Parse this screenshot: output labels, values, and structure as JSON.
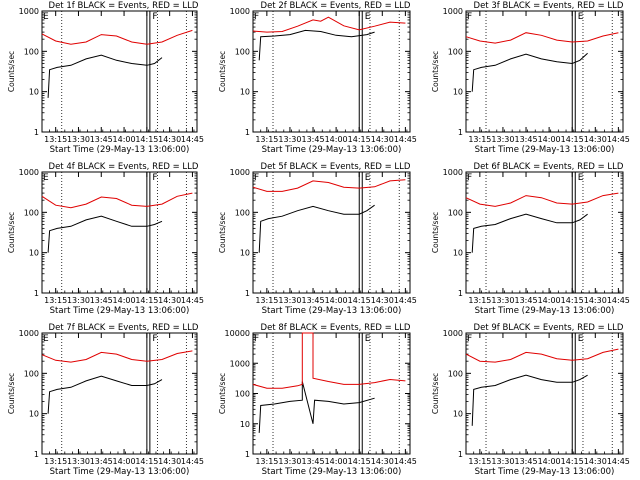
{
  "figure": {
    "colors": {
      "events": "#000000",
      "lld": "#e00000",
      "axes": "#000000",
      "background": "#ffffff"
    }
  },
  "chart_data": [
    {
      "type": "line",
      "title": "Det 1f BLACK = Events, RED = LLD",
      "xlabel": "Start Time (29-May-13 13:06:00)",
      "ylabel": "Counts/sec",
      "yscale": "log",
      "ylim": [
        1,
        1000
      ],
      "xlim": [
        "13:06",
        "14:48"
      ],
      "y_ticks": [
        "1",
        "10",
        "100",
        "1000"
      ],
      "x_ticks": [
        "13:15",
        "13:30",
        "13:45",
        "14:00",
        "14:15",
        "14:30",
        "14:45"
      ],
      "markers": [
        "E",
        "F"
      ],
      "series": [
        {
          "name": "BLACK = Events",
          "color": "#000000",
          "x": [
            "13:10",
            "13:11",
            "13:16",
            "13:25",
            "13:35",
            "13:45",
            "13:55",
            "14:05",
            "14:15",
            "14:20",
            "14:25"
          ],
          "y": [
            7,
            35,
            40,
            45,
            65,
            80,
            60,
            50,
            45,
            50,
            70
          ]
        },
        {
          "name": "RED = LLD",
          "color": "#e00000",
          "x": [
            "13:06",
            "13:15",
            "13:25",
            "13:35",
            "13:45",
            "13:55",
            "14:05",
            "14:15",
            "14:25",
            "14:35",
            "14:45"
          ],
          "y": [
            270,
            180,
            150,
            170,
            260,
            240,
            170,
            150,
            170,
            250,
            330
          ]
        }
      ]
    },
    {
      "type": "line",
      "title": "Det 2f BLACK = Events, RED = LLD",
      "xlabel": "Start Time (29-May-13 13:06:00)",
      "ylabel": "Counts/sec",
      "yscale": "log",
      "ylim": [
        1,
        1000
      ],
      "xlim": [
        "13:06",
        "14:48"
      ],
      "y_ticks": [
        "1",
        "10",
        "100",
        "1000"
      ],
      "x_ticks": [
        "13:15",
        "13:30",
        "13:45",
        "14:00",
        "14:15",
        "14:30",
        "14:45"
      ],
      "markers": [
        "F",
        "E"
      ],
      "series": [
        {
          "name": "BLACK = Events",
          "color": "#000000",
          "x": [
            "13:10",
            "13:11",
            "13:20",
            "13:30",
            "13:40",
            "13:50",
            "14:00",
            "14:10",
            "14:20",
            "14:25"
          ],
          "y": [
            60,
            230,
            240,
            260,
            330,
            310,
            250,
            230,
            260,
            300
          ]
        },
        {
          "name": "RED = LLD",
          "color": "#e00000",
          "x": [
            "13:06",
            "13:15",
            "13:25",
            "13:35",
            "13:45",
            "13:50",
            "13:55",
            "14:05",
            "14:15",
            "14:25",
            "14:35",
            "14:45"
          ],
          "y": [
            320,
            300,
            310,
            420,
            600,
            560,
            700,
            430,
            340,
            420,
            530,
            500
          ]
        }
      ]
    },
    {
      "type": "line",
      "title": "Det 3f BLACK = Events, RED = LLD",
      "xlabel": "Start Time (29-May-13 13:06:00)",
      "ylabel": "Counts/sec",
      "yscale": "log",
      "ylim": [
        1,
        1000
      ],
      "xlim": [
        "13:06",
        "14:48"
      ],
      "y_ticks": [
        "1",
        "10",
        "100",
        "1000"
      ],
      "x_ticks": [
        "13:15",
        "13:30",
        "13:45",
        "14:00",
        "14:15",
        "14:30",
        "14:45"
      ],
      "markers": [
        "F",
        "E"
      ],
      "series": [
        {
          "name": "BLACK = Events",
          "color": "#000000",
          "x": [
            "13:10",
            "13:11",
            "13:16",
            "13:25",
            "13:35",
            "13:45",
            "13:55",
            "14:05",
            "14:15",
            "14:20",
            "14:25"
          ],
          "y": [
            10,
            35,
            40,
            45,
            65,
            85,
            65,
            55,
            50,
            60,
            90
          ]
        },
        {
          "name": "RED = LLD",
          "color": "#e00000",
          "x": [
            "13:06",
            "13:15",
            "13:25",
            "13:35",
            "13:45",
            "13:55",
            "14:05",
            "14:15",
            "14:25",
            "14:35",
            "14:45"
          ],
          "y": [
            230,
            180,
            160,
            190,
            290,
            250,
            190,
            170,
            180,
            240,
            290
          ]
        }
      ]
    },
    {
      "type": "line",
      "title": "Det 4f BLACK = Events, RED = LLD",
      "xlabel": "Start Time (29-May-13 13:06:00)",
      "ylabel": "Counts/sec",
      "yscale": "log",
      "ylim": [
        1,
        1000
      ],
      "xlim": [
        "13:06",
        "14:48"
      ],
      "y_ticks": [
        "1",
        "10",
        "100",
        "1000"
      ],
      "x_ticks": [
        "13:15",
        "13:30",
        "13:45",
        "14:00",
        "14:15",
        "14:30",
        "14:45"
      ],
      "markers": [
        "E",
        "F"
      ],
      "series": [
        {
          "name": "BLACK = Events",
          "color": "#000000",
          "x": [
            "13:10",
            "13:11",
            "13:16",
            "13:25",
            "13:35",
            "13:45",
            "13:55",
            "14:05",
            "14:15",
            "14:20",
            "14:25"
          ],
          "y": [
            10,
            35,
            40,
            45,
            65,
            80,
            60,
            45,
            45,
            50,
            60
          ]
        },
        {
          "name": "RED = LLD",
          "color": "#e00000",
          "x": [
            "13:06",
            "13:15",
            "13:25",
            "13:35",
            "13:45",
            "13:55",
            "14:05",
            "14:15",
            "14:25",
            "14:35",
            "14:45"
          ],
          "y": [
            250,
            150,
            130,
            160,
            240,
            220,
            150,
            140,
            160,
            250,
            300
          ]
        }
      ]
    },
    {
      "type": "line",
      "title": "Det 5f BLACK = Events, RED = LLD",
      "xlabel": "Start Time (29-May-13 13:06:00)",
      "ylabel": "Counts/sec",
      "yscale": "log",
      "ylim": [
        1,
        1000
      ],
      "xlim": [
        "13:06",
        "14:48"
      ],
      "y_ticks": [
        "1",
        "10",
        "100",
        "1000"
      ],
      "x_ticks": [
        "13:15",
        "13:30",
        "13:45",
        "14:00",
        "14:15",
        "14:30",
        "14:45"
      ],
      "markers": [
        "F",
        "E"
      ],
      "series": [
        {
          "name": "BLACK = Events",
          "color": "#000000",
          "x": [
            "13:10",
            "13:11",
            "13:16",
            "13:25",
            "13:35",
            "13:45",
            "13:55",
            "14:05",
            "14:15",
            "14:20",
            "14:25"
          ],
          "y": [
            10,
            60,
            70,
            80,
            110,
            140,
            110,
            90,
            90,
            110,
            150
          ]
        },
        {
          "name": "RED = LLD",
          "color": "#e00000",
          "x": [
            "13:06",
            "13:15",
            "13:25",
            "13:35",
            "13:45",
            "13:55",
            "14:05",
            "14:15",
            "14:25",
            "14:35",
            "14:45"
          ],
          "y": [
            420,
            330,
            330,
            400,
            600,
            550,
            420,
            400,
            430,
            600,
            640
          ]
        }
      ]
    },
    {
      "type": "line",
      "title": "Det 6f BLACK = Events, RED = LLD",
      "xlabel": "Start Time (29-May-13 13:06:00)",
      "ylabel": "Counts/sec",
      "yscale": "log",
      "ylim": [
        1,
        1000
      ],
      "xlim": [
        "13:06",
        "14:48"
      ],
      "y_ticks": [
        "1",
        "10",
        "100",
        "1000"
      ],
      "x_ticks": [
        "13:15",
        "13:30",
        "13:45",
        "14:00",
        "14:15",
        "14:30",
        "14:45"
      ],
      "markers": [
        "F",
        "E"
      ],
      "series": [
        {
          "name": "BLACK = Events",
          "color": "#000000",
          "x": [
            "13:10",
            "13:11",
            "13:16",
            "13:25",
            "13:35",
            "13:45",
            "13:55",
            "14:05",
            "14:15",
            "14:20",
            "14:25"
          ],
          "y": [
            10,
            40,
            45,
            50,
            70,
            90,
            70,
            55,
            55,
            65,
            90
          ]
        },
        {
          "name": "RED = LLD",
          "color": "#e00000",
          "x": [
            "13:06",
            "13:15",
            "13:25",
            "13:35",
            "13:45",
            "13:55",
            "14:05",
            "14:15",
            "14:25",
            "14:35",
            "14:45"
          ],
          "y": [
            230,
            160,
            140,
            170,
            260,
            230,
            170,
            160,
            180,
            260,
            300
          ]
        }
      ]
    },
    {
      "type": "line",
      "title": "Det 7f BLACK = Events, RED = LLD",
      "xlabel": "Start Time (29-May-13 13:06:00)",
      "ylabel": "Counts/sec",
      "yscale": "log",
      "ylim": [
        1,
        1000
      ],
      "xlim": [
        "13:06",
        "14:48"
      ],
      "y_ticks": [
        "1",
        "10",
        "100",
        "1000"
      ],
      "x_ticks": [
        "13:15",
        "13:30",
        "13:45",
        "14:00",
        "14:15",
        "14:30",
        "14:45"
      ],
      "markers": [
        "E",
        "F"
      ],
      "series": [
        {
          "name": "BLACK = Events",
          "color": "#000000",
          "x": [
            "13:10",
            "13:11",
            "13:16",
            "13:25",
            "13:35",
            "13:45",
            "13:55",
            "14:05",
            "14:15",
            "14:20",
            "14:25"
          ],
          "y": [
            10,
            35,
            40,
            45,
            65,
            85,
            65,
            50,
            50,
            55,
            70
          ]
        },
        {
          "name": "RED = LLD",
          "color": "#e00000",
          "x": [
            "13:06",
            "13:15",
            "13:25",
            "13:35",
            "13:45",
            "13:55",
            "14:05",
            "14:15",
            "14:25",
            "14:35",
            "14:45"
          ],
          "y": [
            290,
            210,
            190,
            220,
            330,
            300,
            220,
            200,
            220,
            310,
            360
          ]
        }
      ]
    },
    {
      "type": "line",
      "title": "Det 8f BLACK = Events, RED = LLD",
      "xlabel": "Start Time (29-May-13 13:06:00)",
      "ylabel": "Counts/sec",
      "yscale": "log",
      "ylim": [
        1,
        10000
      ],
      "xlim": [
        "13:06",
        "14:48"
      ],
      "y_ticks": [
        "1",
        "10",
        "100",
        "1000",
        "10000"
      ],
      "x_ticks": [
        "13:15",
        "13:30",
        "13:45",
        "14:00",
        "14:15",
        "14:30",
        "14:45"
      ],
      "markers": [
        "F",
        "E"
      ],
      "series": [
        {
          "name": "BLACK = Events",
          "color": "#000000",
          "x": [
            "13:10",
            "13:11",
            "13:20",
            "13:30",
            "13:38",
            "13:38",
            "13:45",
            "13:46",
            "13:55",
            "14:05",
            "14:15",
            "14:25"
          ],
          "y": [
            5,
            40,
            45,
            55,
            60,
            250,
            10,
            60,
            55,
            45,
            50,
            70
          ]
        },
        {
          "name": "RED = LLD",
          "color": "#e00000",
          "x": [
            "13:06",
            "13:15",
            "13:25",
            "13:35",
            "13:38",
            "13:38",
            "13:45",
            "13:45",
            "13:55",
            "14:05",
            "14:15",
            "14:25",
            "14:35",
            "14:45"
          ],
          "y": [
            200,
            150,
            150,
            180,
            200,
            10000,
            10000,
            320,
            250,
            200,
            200,
            230,
            290,
            260
          ]
        }
      ]
    },
    {
      "type": "line",
      "title": "Det 9f BLACK = Events, RED = LLD",
      "xlabel": "Start Time (29-May-13 13:06:00)",
      "ylabel": "Counts/sec",
      "yscale": "log",
      "ylim": [
        1,
        1000
      ],
      "xlim": [
        "13:06",
        "14:48"
      ],
      "y_ticks": [
        "1",
        "10",
        "100",
        "1000"
      ],
      "x_ticks": [
        "13:15",
        "13:30",
        "13:45",
        "14:00",
        "14:15",
        "14:30",
        "14:45"
      ],
      "markers": [
        "F",
        "E"
      ],
      "series": [
        {
          "name": "BLACK = Events",
          "color": "#000000",
          "x": [
            "13:10",
            "13:11",
            "13:16",
            "13:25",
            "13:35",
            "13:45",
            "13:55",
            "14:05",
            "14:15",
            "14:20",
            "14:25"
          ],
          "y": [
            5,
            40,
            45,
            50,
            70,
            90,
            70,
            60,
            60,
            70,
            90
          ]
        },
        {
          "name": "RED = LLD",
          "color": "#e00000",
          "x": [
            "13:06",
            "13:15",
            "13:25",
            "13:35",
            "13:45",
            "13:55",
            "14:05",
            "14:15",
            "14:25",
            "14:35",
            "14:45"
          ],
          "y": [
            300,
            200,
            190,
            220,
            330,
            300,
            230,
            210,
            230,
            330,
            400
          ]
        }
      ]
    }
  ]
}
